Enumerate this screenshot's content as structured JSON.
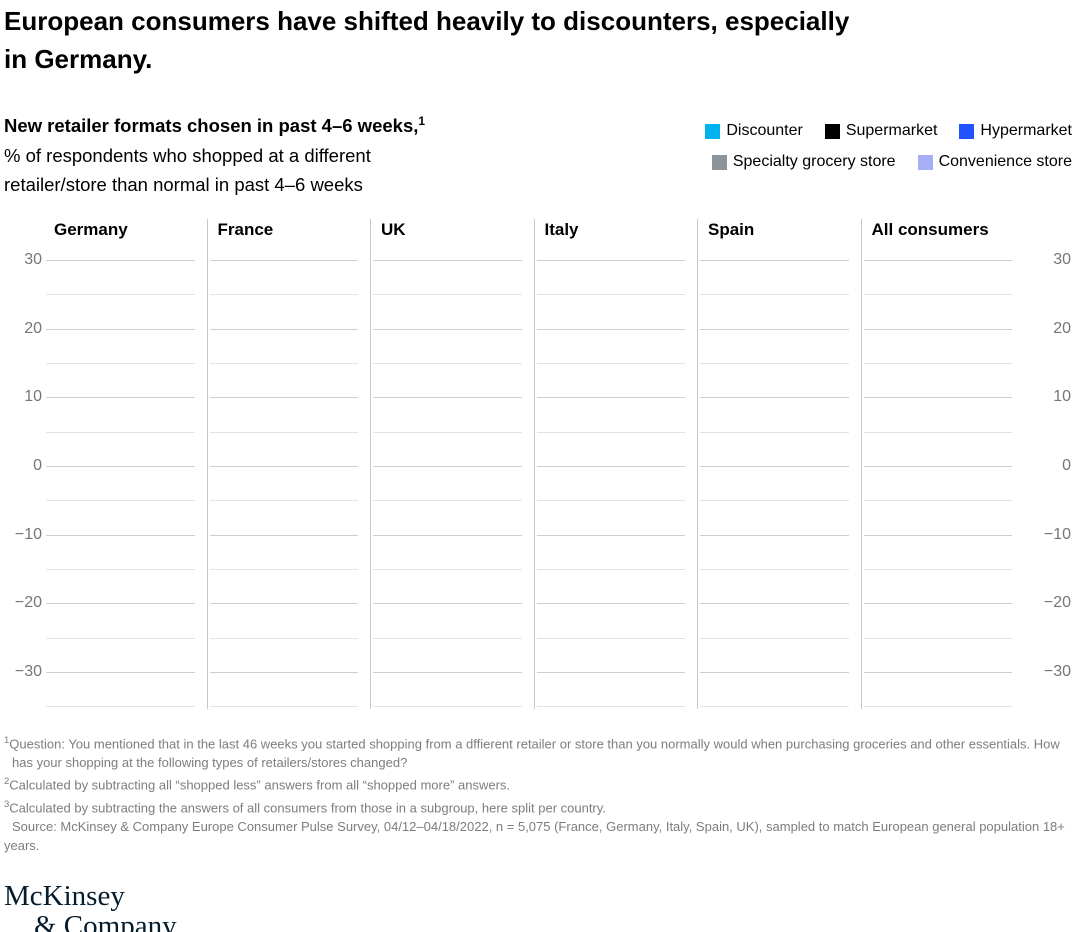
{
  "title": {
    "full": "European consumers have shifted heavily to discounters, especially in Germany.",
    "lines": [
      "European consumers have shifted heavily to discounters, especially",
      "in Germany."
    ]
  },
  "subtitle": {
    "heading": "New retailer formats chosen in past 4–6 weeks,",
    "heading_sup": "1",
    "desc_line1": "% of respondents who shopped at a different",
    "desc_line2": "retailer/store than normal in past 4–6 weeks"
  },
  "legend": {
    "rows": [
      [
        {
          "label": "Discounter",
          "color": "#00b3f0"
        },
        {
          "label": "Supermarket",
          "color": "#000000"
        },
        {
          "label": "Hypermarket",
          "color": "#2251ff"
        }
      ],
      [
        {
          "label": "Specialty grocery store",
          "color": "#8b949b"
        },
        {
          "label": "Convenience store",
          "color": "#a6aff4"
        }
      ]
    ]
  },
  "chart_data": {
    "type": "bar",
    "title": "New retailer formats chosen in past 4–6 weeks",
    "panels": [
      "Germany",
      "France",
      "UK",
      "Italy",
      "Spain",
      "All consumers"
    ],
    "series": [
      {
        "name": "Discounter",
        "color": "#00b3f0",
        "values": []
      },
      {
        "name": "Supermarket",
        "color": "#000000",
        "values": []
      },
      {
        "name": "Hypermarket",
        "color": "#2251ff",
        "values": []
      },
      {
        "name": "Specialty grocery store",
        "color": "#8b949b",
        "values": []
      },
      {
        "name": "Convenience store",
        "color": "#a6aff4",
        "values": []
      }
    ],
    "bars_rendered": false,
    "ylabel": "% of respondents",
    "ylim": [
      -35,
      32
    ],
    "ytick_labels": [
      30,
      20,
      10,
      0,
      -10,
      -20,
      -30
    ],
    "gridline_values": [
      30,
      25,
      20,
      15,
      10,
      5,
      0,
      -5,
      -10,
      -15,
      -20,
      -25,
      -30,
      -35
    ],
    "grid": true,
    "axis_labels_both_sides": true,
    "legend_position": "top-right"
  },
  "footnotes": [
    {
      "sup": "1",
      "text": "Question: You mentioned that in the last 46 weeks you started shopping from a dffierent retailer or store than you normally would when purchasing groceries and other essentials. How has your shopping at the following types of retailers/stores changed?"
    },
    {
      "sup": "2",
      "text": "Calculated by subtracting all “shopped less” answers from all “shopped more” answers."
    },
    {
      "sup": "3",
      "text": "Calculated by subtracting the answers of all consumers from those in a subgroup, here split per country."
    },
    {
      "sup": "",
      "text": "Source: McKinsey & Company Europe Consumer Pulse Survey, 04/12–04/18/2022, n = 5,075 (France, Germany, Italy, Spain, UK), sampled to match European general population 18+ years."
    }
  ],
  "logo": {
    "line1": "McKinsey",
    "line2": "& Company",
    "color": "#051c2c"
  },
  "colors": {
    "gridline_major": "#cfcfcf",
    "gridline_minor": "#e3e3e3",
    "panel_divider": "#c9c9c9",
    "axis_text": "#767676",
    "footnote_text": "#7d7d7d"
  }
}
